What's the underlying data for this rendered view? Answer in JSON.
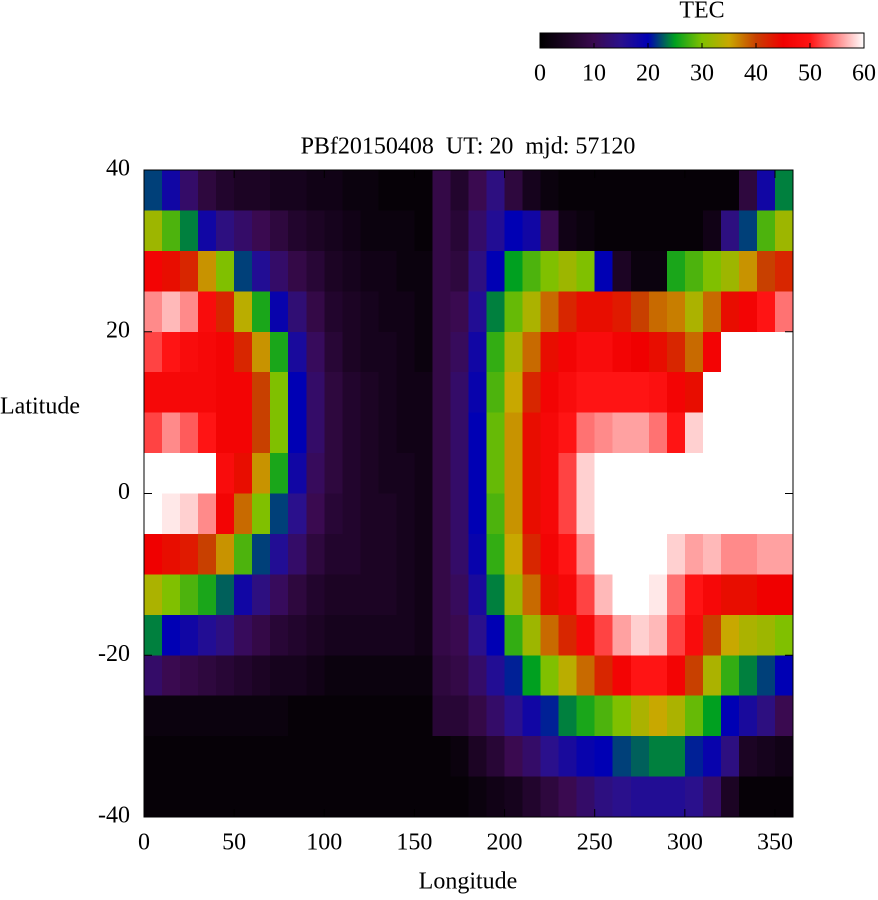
{
  "chart_data": {
    "type": "heatmap",
    "title": "PBf20150408  UT: 20  mjd: 57120",
    "xlabel": "Longitude",
    "ylabel": "Latitude",
    "xlim": [
      0,
      360
    ],
    "ylim": [
      -40,
      40
    ],
    "xticks": [
      0,
      50,
      100,
      150,
      200,
      250,
      300,
      350
    ],
    "yticks": [
      -40,
      -20,
      0,
      20,
      40
    ],
    "x": [
      5,
      15,
      25,
      35,
      45,
      55,
      65,
      75,
      85,
      95,
      105,
      115,
      125,
      135,
      145,
      155,
      165,
      175,
      185,
      195,
      205,
      215,
      225,
      235,
      245,
      255,
      265,
      275,
      285,
      295,
      305,
      315,
      325,
      335,
      345,
      355
    ],
    "y": [
      37.5,
      32.5,
      27.5,
      22.5,
      17.5,
      12.5,
      7.5,
      2.5,
      -2.5,
      -7.5,
      -12.5,
      -17.5,
      -22.5,
      -27.5,
      -32.5,
      -37.5
    ],
    "values": [
      [
        22,
        32,
        46,
        55,
        52,
        47,
        52,
        60,
        60,
        45,
        33,
        24,
        12,
        2,
        1,
        1
      ],
      [
        18,
        28,
        44,
        57,
        50,
        47,
        55,
        60,
        59,
        44,
        30,
        20,
        10,
        2,
        1,
        1
      ],
      [
        12,
        24,
        42,
        55,
        48,
        47,
        53,
        60,
        58,
        43,
        28,
        18,
        9,
        2,
        1,
        1
      ],
      [
        8,
        18,
        36,
        48,
        47,
        47,
        50,
        60,
        55,
        40,
        26,
        16,
        8,
        2,
        1,
        1
      ],
      [
        6,
        14,
        30,
        42,
        46,
        46,
        46,
        48,
        46,
        36,
        23,
        14,
        7,
        2,
        1,
        1
      ],
      [
        5,
        12,
        22,
        34,
        42,
        46,
        46,
        44,
        38,
        28,
        18,
        11,
        6,
        2,
        1,
        1
      ],
      [
        5,
        10,
        16,
        26,
        36,
        40,
        40,
        36,
        30,
        22,
        14,
        9,
        5,
        2,
        1,
        1
      ],
      [
        4,
        8,
        12,
        19,
        26,
        30,
        30,
        26,
        22,
        16,
        11,
        7,
        4,
        2,
        1,
        1
      ],
      [
        4,
        6,
        9,
        13,
        17,
        20,
        20,
        18,
        15,
        12,
        8,
        6,
        4,
        1,
        1,
        1
      ],
      [
        3,
        5,
        7,
        9,
        11,
        12,
        12,
        11,
        10,
        8,
        6,
        5,
        3,
        1,
        1,
        1
      ],
      [
        3,
        4,
        5,
        6,
        7,
        8,
        8,
        8,
        7,
        6,
        5,
        4,
        2,
        1,
        1,
        1
      ],
      [
        2,
        3,
        4,
        5,
        5,
        6,
        6,
        6,
        6,
        6,
        5,
        4,
        2,
        1,
        1,
        1
      ],
      [
        2,
        2,
        3,
        4,
        4,
        5,
        5,
        5,
        5,
        5,
        5,
        4,
        2,
        1,
        1,
        1
      ],
      [
        1,
        2,
        3,
        3,
        4,
        4,
        4,
        4,
        5,
        5,
        5,
        4,
        2,
        1,
        1,
        1
      ],
      [
        1,
        2,
        2,
        3,
        3,
        3,
        3,
        4,
        4,
        4,
        4,
        4,
        2,
        1,
        1,
        1
      ],
      [
        1,
        1,
        2,
        2,
        2,
        3,
        3,
        3,
        3,
        3,
        3,
        3,
        2,
        1,
        1,
        1
      ],
      [
        9,
        9,
        9,
        9,
        9,
        9,
        9,
        9,
        9,
        9,
        9,
        9,
        8,
        7,
        1,
        1
      ],
      [
        6,
        7,
        8,
        10,
        11,
        12,
        12,
        12,
        12,
        12,
        11,
        10,
        9,
        7,
        2,
        1
      ],
      [
        10,
        12,
        14,
        16,
        18,
        19,
        20,
        20,
        20,
        19,
        17,
        15,
        12,
        9,
        5,
        2
      ],
      [
        14,
        16,
        20,
        24,
        27,
        28,
        29,
        29,
        28,
        27,
        24,
        20,
        16,
        12,
        7,
        3
      ],
      [
        8,
        20,
        25,
        29,
        33,
        35,
        36,
        36,
        36,
        35,
        32,
        27,
        21,
        15,
        10,
        4
      ],
      [
        4,
        18,
        28,
        33,
        38,
        42,
        44,
        44,
        44,
        42,
        38,
        32,
        25,
        18,
        12,
        6
      ],
      [
        2,
        10,
        30,
        38,
        44,
        46,
        47,
        47,
        47,
        46,
        44,
        38,
        30,
        21,
        15,
        8
      ],
      [
        1,
        3,
        32,
        42,
        46,
        48,
        50,
        52,
        52,
        50,
        47,
        42,
        34,
        24,
        17,
        10
      ],
      [
        1,
        2,
        30,
        44,
        48,
        50,
        54,
        58,
        58,
        55,
        52,
        47,
        38,
        26,
        19,
        12
      ],
      [
        1,
        1,
        20,
        44,
        48,
        50,
        55,
        60,
        60,
        60,
        57,
        52,
        42,
        28,
        20,
        14
      ],
      [
        1,
        1,
        5,
        43,
        46,
        50,
        56,
        60,
        60,
        60,
        60,
        56,
        46,
        30,
        22,
        15
      ],
      [
        1,
        1,
        2,
        40,
        45,
        50,
        56,
        60,
        60,
        60,
        60,
        58,
        50,
        33,
        23,
        16
      ],
      [
        1,
        1,
        2,
        38,
        44,
        49,
        54,
        60,
        60,
        60,
        59,
        57,
        50,
        35,
        24,
        16
      ],
      [
        1,
        1,
        26,
        37,
        42,
        46,
        50,
        60,
        60,
        58,
        54,
        52,
        46,
        33,
        24,
        16
      ],
      [
        1,
        1,
        28,
        33,
        38,
        44,
        58,
        60,
        60,
        56,
        50,
        48,
        40,
        29,
        21,
        15
      ],
      [
        1,
        3,
        30,
        38,
        46,
        60,
        60,
        60,
        60,
        57,
        47,
        40,
        33,
        25,
        19,
        12
      ],
      [
        1,
        14,
        32,
        44,
        60,
        60,
        60,
        60,
        60,
        55,
        44,
        35,
        27,
        20,
        14,
        5
      ],
      [
        8,
        22,
        36,
        46,
        60,
        60,
        60,
        60,
        60,
        55,
        44,
        33,
        24,
        17,
        5,
        1
      ],
      [
        18,
        28,
        40,
        50,
        60,
        60,
        60,
        60,
        60,
        56,
        45,
        32,
        22,
        14,
        4,
        1
      ],
      [
        24,
        32,
        42,
        54,
        60,
        60,
        60,
        60,
        60,
        56,
        45,
        30,
        20,
        10,
        3,
        1
      ]
    ],
    "colorbar": {
      "label": "TEC",
      "lim": [
        0,
        60
      ],
      "ticks": [
        0,
        10,
        20,
        30,
        40,
        50,
        60
      ]
    },
    "colormap": [
      "#000000",
      "#1c0424",
      "#3a0a50",
      "#2a108c",
      "#0000b4",
      "#00a020",
      "#80c000",
      "#c8a800",
      "#c84000",
      "#f00000",
      "#ff1414",
      "#ff8a8a",
      "#ffffff"
    ]
  }
}
